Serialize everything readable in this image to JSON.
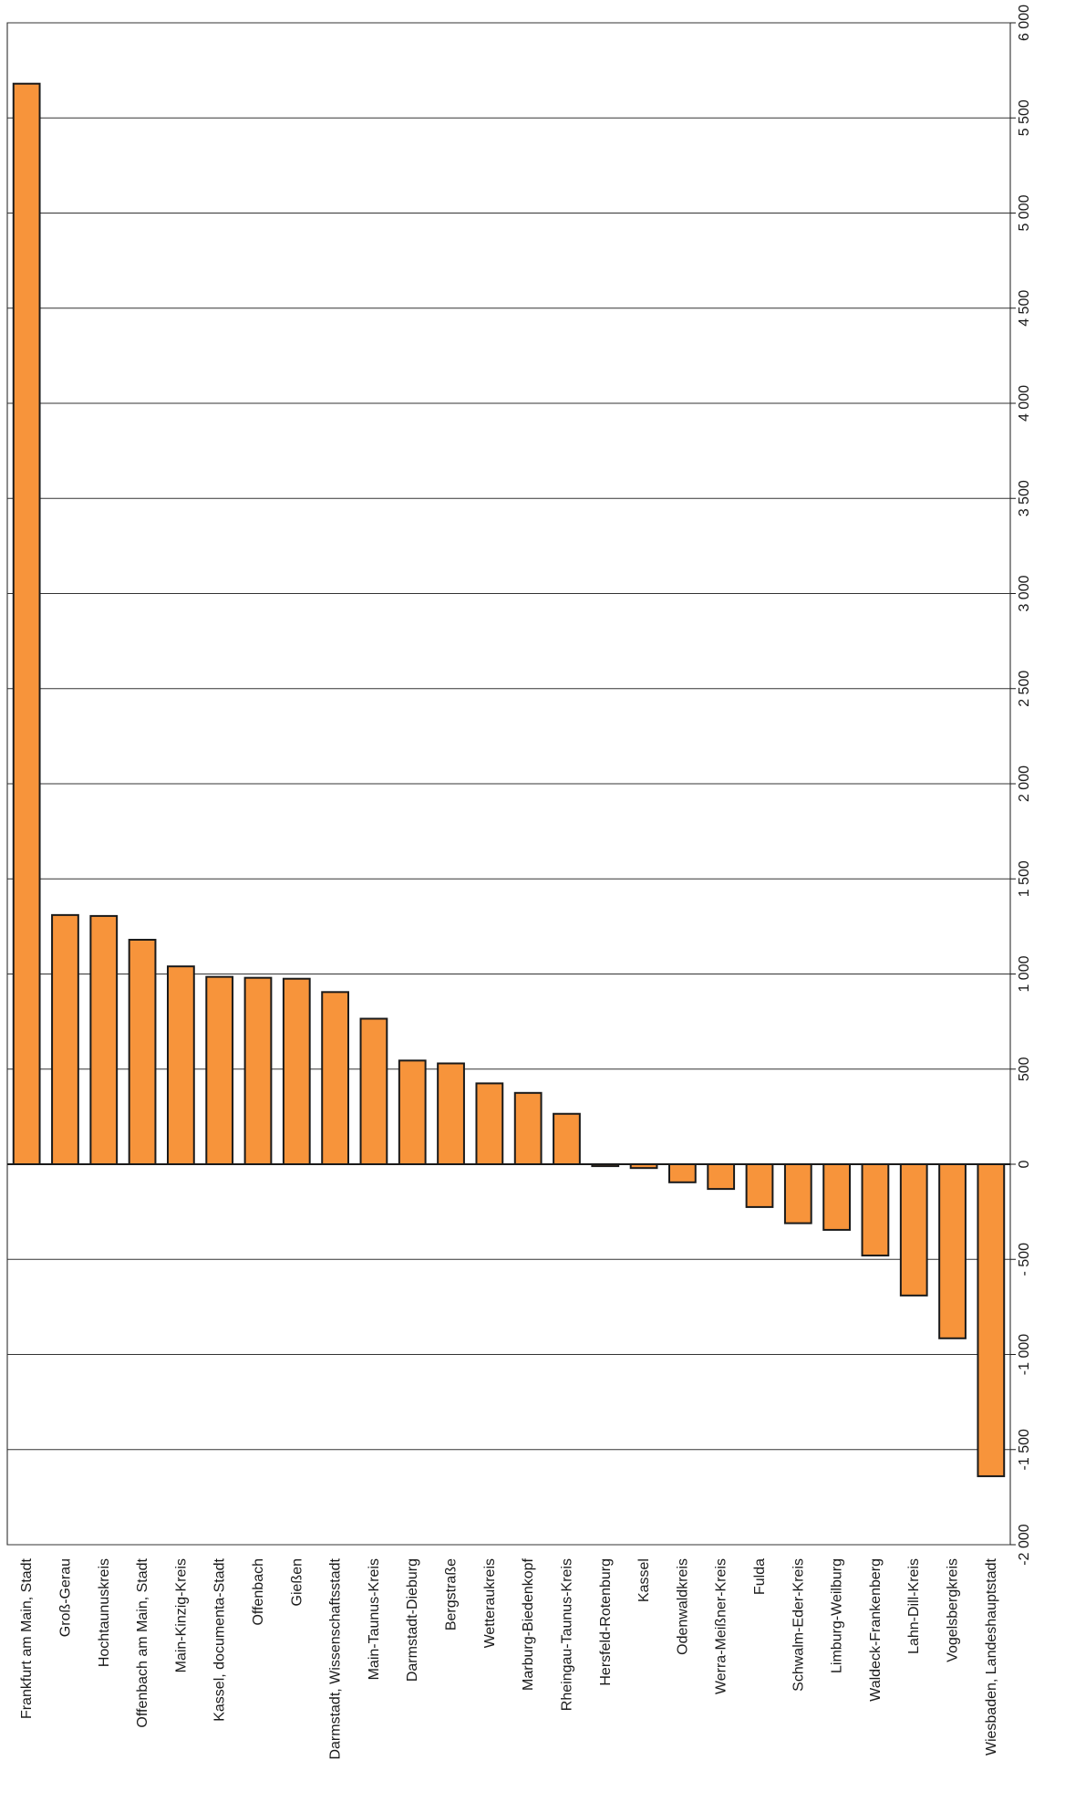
{
  "chart_data": {
    "type": "bar",
    "orientation": "vertical",
    "rotated": "90deg-clockwise",
    "title": "",
    "xlabel": "",
    "ylabel": "",
    "ylim": [
      -2000,
      6000
    ],
    "yticks": [
      -2000,
      -1500,
      -1000,
      -500,
      0,
      500,
      1000,
      1500,
      2000,
      2500,
      3000,
      3500,
      4000,
      4500,
      5000,
      5500,
      6000
    ],
    "ytick_labels": [
      "-2 000",
      "-1 500",
      "-1 000",
      "- 500",
      "0",
      "500",
      "1 000",
      "1 500",
      "2 000",
      "2 500",
      "3 000",
      "3 500",
      "4 000",
      "4 500",
      "5 000",
      "5 500",
      "6 000"
    ],
    "grid": true,
    "legend": "none",
    "bar_color": "#f7943b",
    "bar_edge_color": "#1a1a1a",
    "categories": [
      "Frankfurt am Main, Stadt",
      "Groß-Gerau",
      "Hochtaunuskreis",
      "Offenbach am Main, Stadt",
      "Main-Kinzig-Kreis",
      "Kassel, documenta-Stadt",
      "Offenbach",
      "Gießen",
      "Darmstadt, Wissenschaftsstadt",
      "Main-Taunus-Kreis",
      "Darmstadt-Dieburg",
      "Bergstraße",
      "Wetteraukreis",
      "Marburg-Biedenkopf",
      "Rheingau-Taunus-Kreis",
      "Hersfeld-Rotenburg",
      "Kassel",
      "Odenwaldkreis",
      "Werra-Meißner-Kreis",
      "Fulda",
      "Schwalm-Eder-Kreis",
      "Limburg-Weilburg",
      "Waldeck-Frankenberg",
      "Lahn-Dill-Kreis",
      "Vogelsbergkreis",
      "Wiesbaden, Landeshauptstadt"
    ],
    "values": [
      5680,
      1310,
      1305,
      1180,
      1040,
      985,
      980,
      975,
      905,
      765,
      545,
      530,
      425,
      375,
      265,
      -10,
      -20,
      -95,
      -130,
      -225,
      -310,
      -345,
      -480,
      -690,
      -915,
      -1640
    ]
  }
}
